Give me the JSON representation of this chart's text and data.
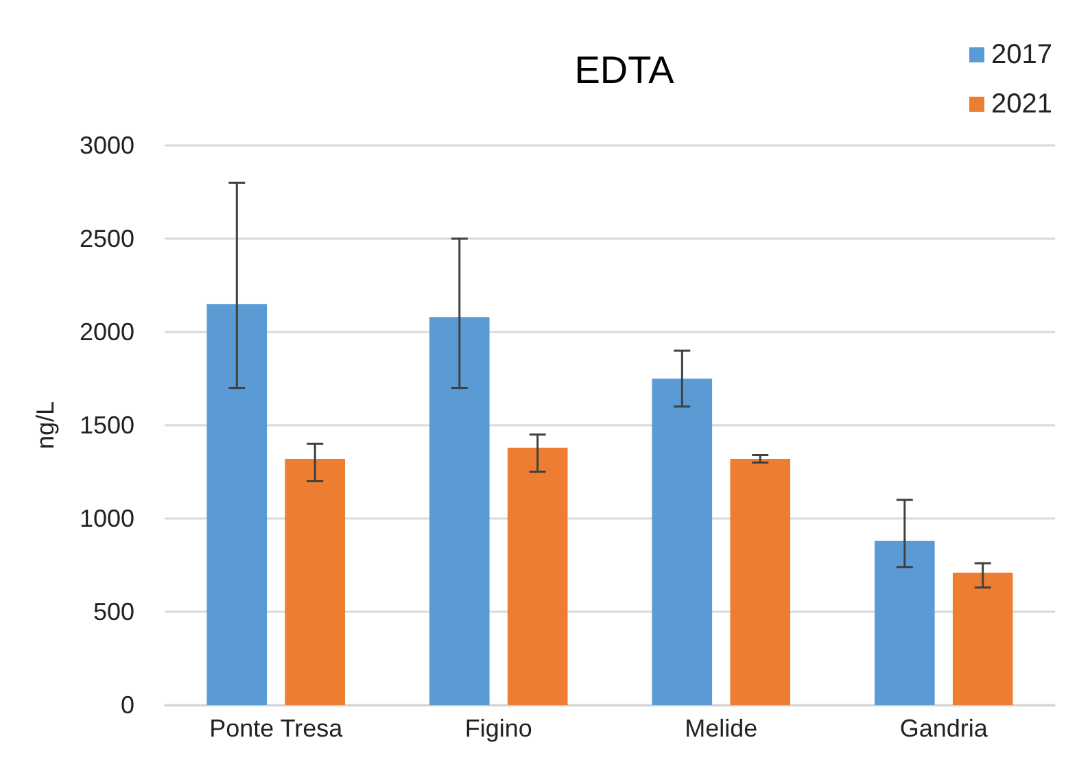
{
  "chart_data": {
    "type": "bar",
    "title": "EDTA",
    "ylabel": "ng/L",
    "categories": [
      "Ponte Tresa",
      "Figino",
      "Melide",
      "Gandria"
    ],
    "series": [
      {
        "name": "2017",
        "color": "#5b9bd5",
        "values": [
          2150,
          2080,
          1750,
          880
        ],
        "errors": [
          [
            1700,
            2800
          ],
          [
            1700,
            2500
          ],
          [
            1600,
            1900
          ],
          [
            740,
            1100
          ]
        ]
      },
      {
        "name": "2021",
        "color": "#ed7d31",
        "values": [
          1320,
          1380,
          1320,
          710
        ],
        "errors": [
          [
            1200,
            1400
          ],
          [
            1250,
            1450
          ],
          [
            1300,
            1340
          ],
          [
            630,
            760
          ]
        ]
      }
    ],
    "ylim": [
      0,
      3000
    ],
    "yticks": [
      0,
      500,
      1000,
      1500,
      2000,
      2500,
      3000
    ],
    "grid": "y",
    "legend": "top right"
  }
}
